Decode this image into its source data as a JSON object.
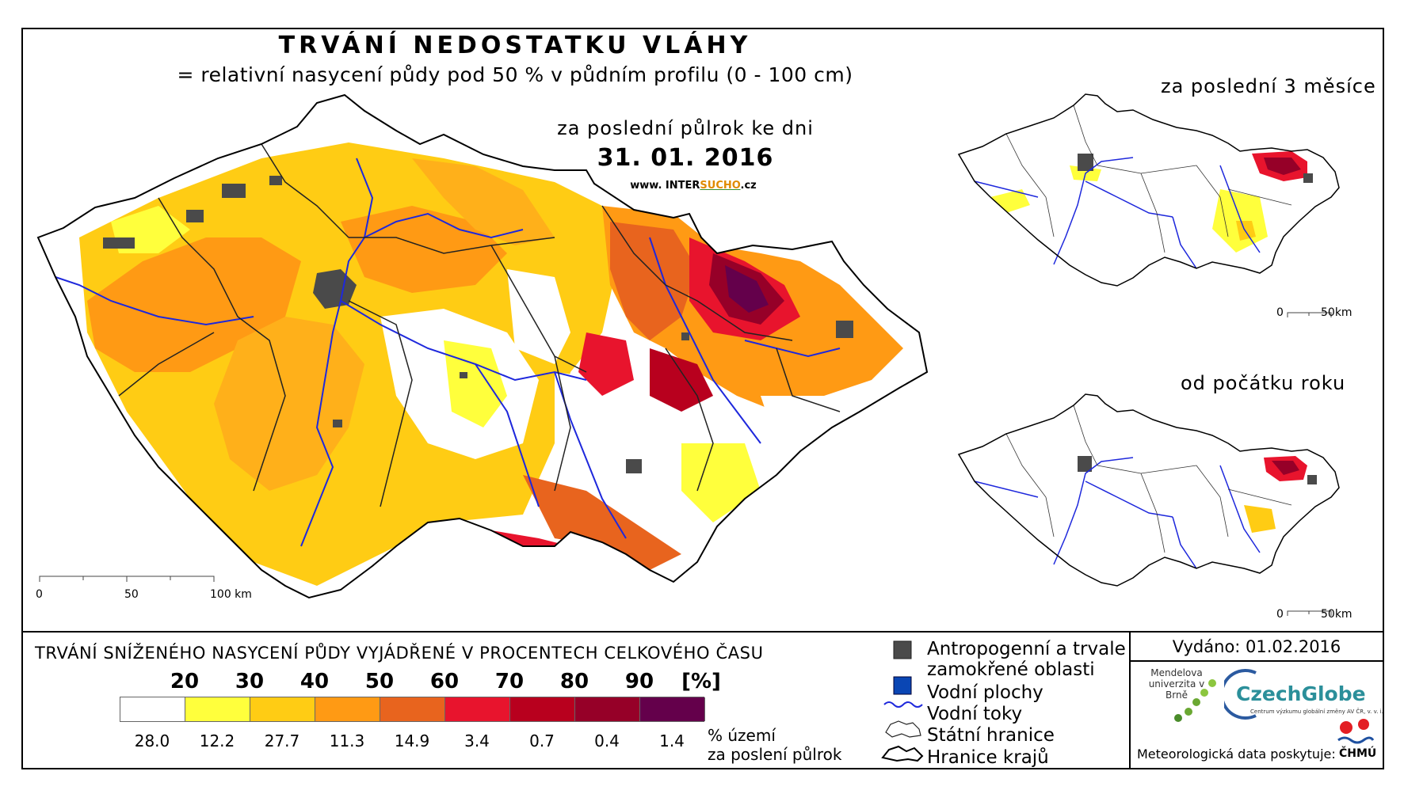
{
  "map": {
    "title": "TRVÁNÍ NEDOSTATKU VLÁHY",
    "subtitle": "= relativní nasycení půdy pod 50 % v půdním profilu (0 - 100 cm)",
    "period_label": "za poslední půlrok ke dni",
    "date": "31. 01. 2016",
    "website_prefix": "www. INTER",
    "website_highlight": "SUCHO",
    "website_suffix": ".cz",
    "main_scale": {
      "zero": "0",
      "mid": "50",
      "end": "100 km"
    }
  },
  "insets": [
    {
      "title": "za poslední 3 měsíce",
      "scale_zero": "0",
      "scale_end": "50km"
    },
    {
      "title": "od počátku roku",
      "scale_zero": "0",
      "scale_end": "50km"
    }
  ],
  "legend": {
    "title": "TRVÁNÍ SNÍŽENÉHO NASYCENÍ PŮDY VYJÁDŘENÉ V PROCENTECH CELKOVÉHO ČASU",
    "thresholds": [
      "20",
      "30",
      "40",
      "50",
      "60",
      "70",
      "80",
      "90"
    ],
    "unit": "[%]",
    "classes": [
      {
        "color": "#ffffff",
        "share": "28.0"
      },
      {
        "color": "#ffff3c",
        "share": "12.2"
      },
      {
        "color": "#ffcc14",
        "share": "27.7"
      },
      {
        "color": "#ff9a14",
        "share": "11.3"
      },
      {
        "color": "#e8641e",
        "share": "14.9"
      },
      {
        "color": "#e8142d",
        "share": "3.4"
      },
      {
        "color": "#b8001e",
        "share": "0.7"
      },
      {
        "color": "#960028",
        "share": "0.4"
      },
      {
        "color": "#64004b",
        "share": "1.4"
      }
    ],
    "share_label_line1": "% území",
    "share_label_line2": "za poslení půlrok"
  },
  "symbols": {
    "urban_line1": "Antropogenní a trvale",
    "urban_line2": "zamokřené oblasti",
    "water_bodies": "Vodní plochy",
    "rivers": "Vodní toky",
    "state_border": "Státní hranice",
    "regions": "Hranice krajů",
    "colors": {
      "urban": "#4a4a4a",
      "water": "#0a46b4",
      "river": "#1e28dc"
    }
  },
  "info": {
    "issued": "Vydáno: 01.02.2016",
    "mendel": "Mendelova univerzita v Brně",
    "czechglobe": "CzechGlobe",
    "czechglobe_sub": "Centrum výzkumu globální změny AV ČR, v. v. i.",
    "meteo_label": "Meteorologická data poskytuje:",
    "chmu": "ČHMÚ"
  }
}
